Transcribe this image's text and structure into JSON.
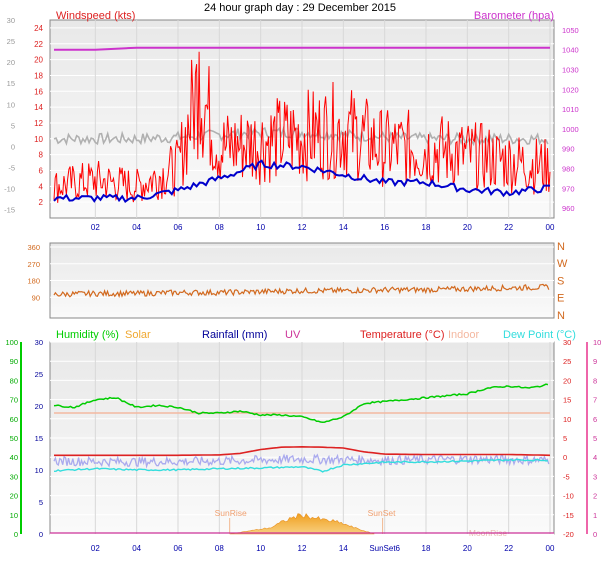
{
  "header": {
    "title": "24 hour graph day : 29 December 2015"
  },
  "colors": {
    "wind_gust": "#ff0000",
    "wind_avg": "#0000cc",
    "wind_dir_grey": "#b0b0b0",
    "barometer": "#cc33cc",
    "direction": "#d2691e",
    "humidity": "#00cc00",
    "solar": "#f0a830",
    "rainfall": "#000099",
    "uv": "#cc3399",
    "temperature": "#dd2222",
    "indoor": "#f4b8a0",
    "dew_point": "#33dddd",
    "feels": "#aaaaee"
  },
  "chart_data": [
    {
      "type": "line",
      "title": "",
      "ylabel_left": "Windspeed (kts)",
      "ylabel_right": "Barometer (hpa)",
      "left_ticks_red": [
        2,
        4,
        6,
        8,
        10,
        12,
        14,
        16,
        18,
        20,
        22,
        24
      ],
      "left_ticks_grey": [
        -15,
        -10,
        -5,
        0,
        5,
        10,
        15,
        20,
        25,
        30
      ],
      "right_ticks": [
        960,
        970,
        980,
        990,
        1000,
        1010,
        1020,
        1030,
        1040,
        1050
      ],
      "ylim": [
        0,
        25
      ],
      "x_ticks": [
        "02",
        "04",
        "06",
        "08",
        "10",
        "12",
        "14",
        "16",
        "18",
        "20",
        "22",
        "00"
      ],
      "series": [
        {
          "name": "Barometer (hpa)",
          "x": [
            0,
            2,
            4,
            6,
            8,
            10,
            12,
            14,
            16,
            18,
            20,
            22,
            24
          ],
          "values": [
            1040,
            1040,
            1041,
            1041,
            1041,
            1041,
            1041,
            1041,
            1041,
            1041,
            1041,
            1041,
            1041
          ]
        },
        {
          "name": "Windspeed (kts)",
          "x": [
            0,
            2,
            4,
            6,
            7,
            8,
            10,
            12,
            14,
            16,
            18,
            20,
            22,
            24
          ],
          "values": [
            5,
            6,
            5,
            8,
            21,
            11,
            12,
            13,
            14,
            11,
            11,
            10,
            9,
            8
          ]
        },
        {
          "x": [
            0,
            2,
            4,
            6,
            8,
            10,
            12,
            14,
            16,
            18,
            20,
            22,
            24
          ],
          "values": [
            2.5,
            2.5,
            2.5,
            3.5,
            5,
            6.8,
            6.5,
            5.5,
            4.5,
            4.5,
            3.6,
            3.2,
            3.8
          ]
        },
        {
          "x": [
            0,
            2,
            4,
            6,
            8,
            10,
            12,
            14,
            16,
            18,
            20,
            22,
            24
          ],
          "values": [
            10,
            10,
            10,
            10.2,
            10.5,
            10.8,
            10.8,
            10.5,
            10.2,
            10,
            10,
            10,
            10
          ]
        }
      ]
    },
    {
      "type": "line",
      "title": "",
      "left_ticks": [
        90,
        180,
        270,
        360
      ],
      "right_labels": [
        "N",
        "W",
        "S",
        "E",
        "N"
      ],
      "ylim": [
        0,
        360
      ],
      "series": [
        {
          "x": [
            0,
            2,
            4,
            6,
            8,
            10,
            12,
            14,
            16,
            18,
            20,
            22,
            24
          ],
          "values": [
            105,
            110,
            110,
            115,
            115,
            120,
            125,
            125,
            130,
            130,
            135,
            140,
            145
          ]
        }
      ]
    },
    {
      "type": "line",
      "title": "",
      "legend": [
        "Humidity (%)",
        "Solar",
        "Rainfall (mm)",
        "UV",
        "Temperature (°C)",
        "Indoor",
        "Dew Point (°C)"
      ],
      "left_ticks_outer": [
        0,
        10,
        20,
        30,
        40,
        50,
        60,
        70,
        80,
        90,
        100
      ],
      "left_ticks_inner": [
        0,
        5,
        10,
        15,
        20,
        25,
        30
      ],
      "right_ticks_inner": [
        -20,
        -15,
        -10,
        -5,
        0,
        5,
        10,
        15,
        20,
        25,
        30
      ],
      "right_ticks_outer": [
        0,
        1,
        2,
        3,
        4,
        5,
        6,
        7,
        8,
        9,
        10
      ],
      "x_ticks": [
        "02",
        "04",
        "06",
        "08",
        "10",
        "12",
        "14",
        "SunSet6",
        "18",
        "20",
        "22",
        "00"
      ],
      "annotations": [
        "SunRise",
        "SunSet",
        "MoonRise"
      ],
      "sunrise_hour": 8.5,
      "sunset_hour": 15.9,
      "moonrise_hour": 21.0,
      "series": [
        {
          "name": "Humidity (%)",
          "x": [
            0,
            1,
            2,
            3,
            4,
            5,
            6,
            7,
            8,
            9,
            10,
            11,
            12,
            13,
            14,
            15,
            16,
            17,
            18,
            19,
            20,
            21,
            22,
            23,
            24
          ],
          "values": [
            67,
            66,
            70,
            71,
            66,
            67,
            66,
            63,
            63,
            64,
            62,
            62,
            61,
            58,
            61,
            68,
            69,
            70,
            71,
            72,
            73,
            76,
            77,
            76,
            78
          ]
        },
        {
          "name": "Solar",
          "x": [
            8.5,
            9.5,
            10.5,
            11.0,
            11.5,
            12.0,
            12.5,
            13.0,
            13.5,
            14.0,
            14.5,
            15.0,
            15.5
          ],
          "values": [
            0,
            0.5,
            1.0,
            1.8,
            2.5,
            3.0,
            2.6,
            2.2,
            2.0,
            1.6,
            1.0,
            0.5,
            0
          ]
        },
        {
          "name": "Temperature (°C)",
          "x": [
            0,
            2,
            4,
            6,
            8,
            9,
            10,
            11,
            12,
            13,
            14,
            15,
            16,
            18,
            20,
            22,
            24
          ],
          "values": [
            0.5,
            0.5,
            0.5,
            0.5,
            0.6,
            1.0,
            2.0,
            2.6,
            2.7,
            2.6,
            2.4,
            1.4,
            0.8,
            0.7,
            0.7,
            0.7,
            0.5
          ]
        },
        {
          "name": "Indoor",
          "x": [
            0,
            4,
            8,
            12,
            16,
            20,
            24
          ],
          "values": [
            11.5,
            11.5,
            11.5,
            11.5,
            11.5,
            11.5,
            11.5
          ]
        },
        {
          "name": "Dew Point (°C)",
          "x": [
            0,
            2,
            4,
            6,
            8,
            10,
            12,
            13,
            14,
            16,
            18,
            20,
            22,
            24
          ],
          "values": [
            -3.5,
            -3.0,
            -3.3,
            -3.3,
            -3.0,
            -2.8,
            -2.5,
            -3.7,
            -2.0,
            -1.3,
            -1.2,
            -1.0,
            -0.7,
            -0.8
          ]
        },
        {
          "x": [
            0,
            4,
            8,
            12,
            16,
            20,
            24
          ],
          "values": [
            -1.0,
            -1.2,
            -1.0,
            -0.5,
            -0.8,
            -0.5,
            -0.8
          ]
        }
      ]
    }
  ]
}
